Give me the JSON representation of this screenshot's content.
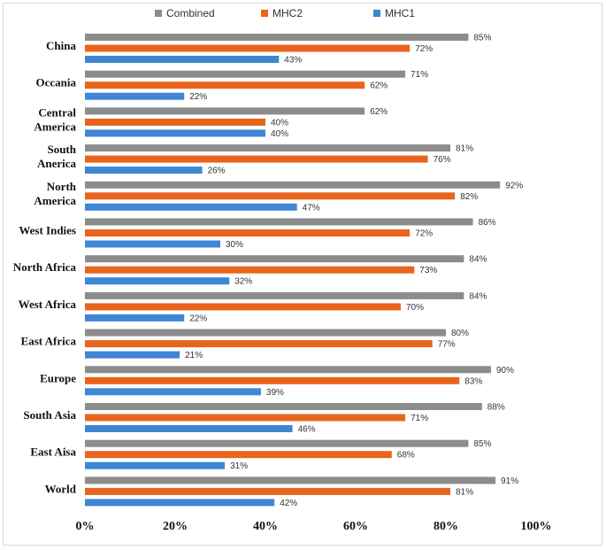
{
  "chart_data": {
    "type": "bar",
    "orientation": "horizontal",
    "title": "",
    "xlabel": "",
    "ylabel": "",
    "xlim": [
      0,
      100
    ],
    "x_ticks": [
      "0%",
      "20%",
      "40%",
      "60%",
      "80%",
      "100%"
    ],
    "grid": false,
    "legend_position": "top",
    "categories": [
      "China",
      "Occania",
      "Central America",
      "South Anerica",
      "North America",
      "West Indies",
      "North Africa",
      "West Africa",
      "East Africa",
      "Europe",
      "South Asia",
      "East Aisa",
      "World"
    ],
    "series": [
      {
        "name": "Combined",
        "color": "#8c8c8c",
        "values": [
          85,
          71,
          62,
          81,
          92,
          86,
          84,
          84,
          80,
          90,
          88,
          85,
          91
        ]
      },
      {
        "name": "MHC2",
        "color": "#e8641c",
        "values": [
          72,
          62,
          40,
          76,
          82,
          72,
          73,
          70,
          77,
          83,
          71,
          68,
          81
        ]
      },
      {
        "name": "MHC1",
        "color": "#3f86d4",
        "values": [
          43,
          22,
          40,
          26,
          47,
          30,
          32,
          22,
          21,
          39,
          46,
          31,
          42
        ]
      }
    ]
  }
}
